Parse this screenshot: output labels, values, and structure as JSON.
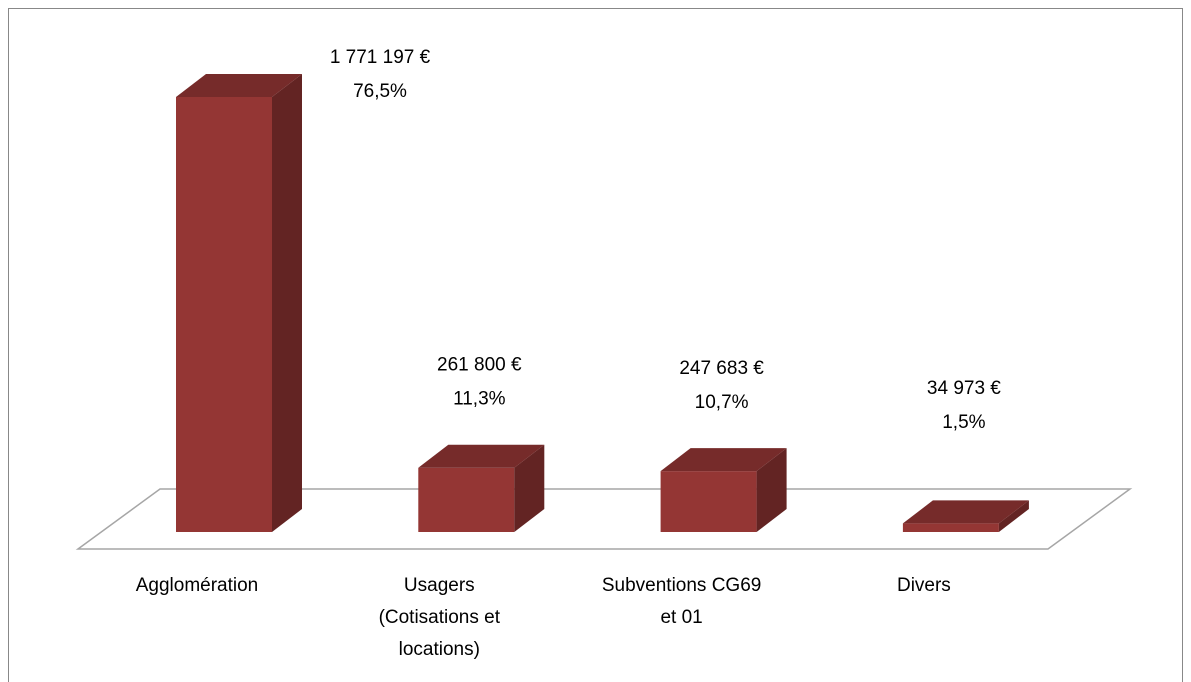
{
  "chart_data": {
    "type": "bar3d",
    "categories": [
      "Agglomération",
      "Usagers (Cotisations et locations)",
      "Subventions CG69 et 01",
      "Divers"
    ],
    "values": [
      1771197,
      261800,
      247683,
      34973
    ],
    "value_labels": [
      "1 771 197 €",
      "261 800 €",
      "247 683 €",
      "34 973 €"
    ],
    "percentages": [
      76.5,
      11.3,
      10.7,
      1.5
    ],
    "percentage_labels": [
      "76,5%",
      "11,3%",
      "10,7%",
      "1,5%"
    ],
    "color": "#943634"
  }
}
